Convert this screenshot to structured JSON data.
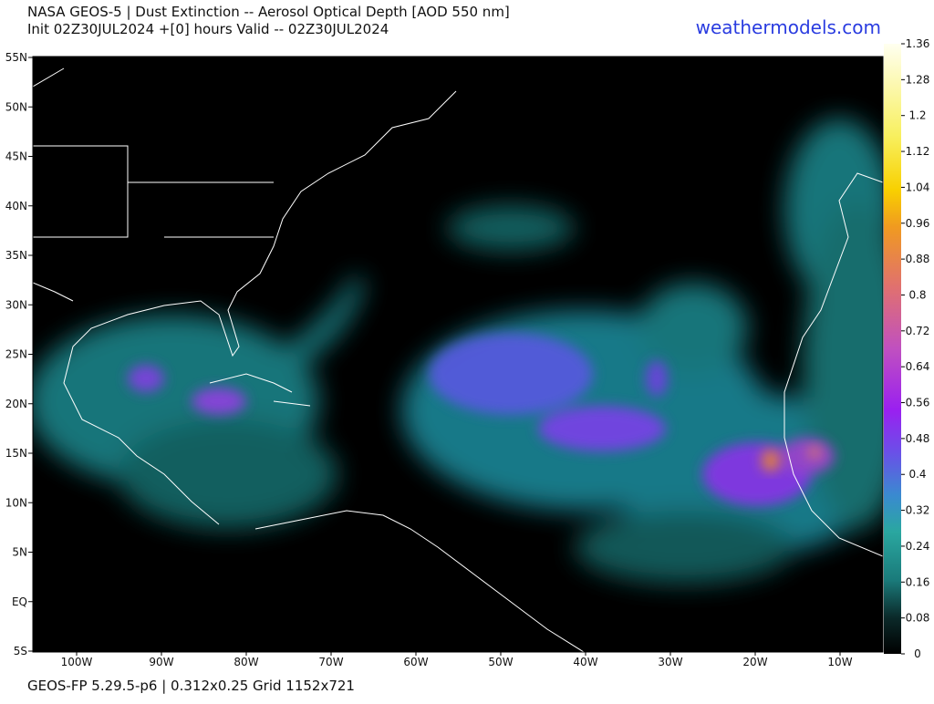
{
  "header": {
    "title": "NASA GEOS-5 | Dust Extinction -- Aerosol Optical Depth [AOD 550 nm]",
    "subtitle": "Init 02Z30JUL2024 +[0] hours Valid -- 02Z30JUL2024",
    "site": "weathermodels.com"
  },
  "map": {
    "lat_labels": [
      "55N",
      "50N",
      "45N",
      "40N",
      "35N",
      "30N",
      "25N",
      "20N",
      "15N",
      "10N",
      "5N",
      "EQ",
      "5S"
    ],
    "lon_labels": [
      "100W",
      "90W",
      "80W",
      "70W",
      "60W",
      "50W",
      "40W",
      "30W",
      "20W",
      "10W"
    ]
  },
  "colorbar": {
    "ticks": [
      1.36,
      1.28,
      1.2,
      1.12,
      1.04,
      0.96,
      0.88,
      0.8,
      0.72,
      0.64,
      0.56,
      0.48,
      0.4,
      0.32,
      0.24,
      0.16,
      0.08,
      0
    ]
  },
  "footer": "GEOS-FP 5.29.5-p6 | 0.312x0.25 Grid 1152x721"
}
